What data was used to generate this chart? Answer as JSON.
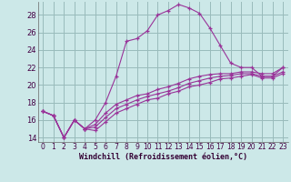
{
  "xlabel": "Windchill (Refroidissement éolien,°C)",
  "bg_color": "#cce8e8",
  "line_color": "#993399",
  "grid_color": "#99bbbb",
  "xlim": [
    -0.5,
    23.5
  ],
  "ylim": [
    13.5,
    29.5
  ],
  "xticks": [
    0,
    1,
    2,
    3,
    4,
    5,
    6,
    7,
    8,
    9,
    10,
    11,
    12,
    13,
    14,
    15,
    16,
    17,
    18,
    19,
    20,
    21,
    22,
    23
  ],
  "yticks": [
    14,
    16,
    18,
    20,
    22,
    24,
    26,
    28
  ],
  "lines": [
    {
      "x": [
        0,
        1,
        2,
        3,
        4,
        5,
        6,
        7,
        8,
        9,
        10,
        11,
        12,
        13,
        14,
        15,
        16,
        17,
        18,
        19,
        20,
        21,
        22,
        23
      ],
      "y": [
        17.0,
        16.5,
        14.0,
        16.0,
        15.0,
        16.0,
        18.0,
        21.0,
        25.0,
        25.3,
        26.2,
        28.0,
        28.5,
        29.2,
        28.8,
        28.2,
        26.5,
        24.5,
        22.5,
        22.0,
        22.0,
        21.0,
        21.0,
        22.0
      ]
    },
    {
      "x": [
        0,
        1,
        2,
        3,
        4,
        5,
        6,
        7,
        8,
        9,
        10,
        11,
        12,
        13,
        14,
        15,
        16,
        17,
        18,
        19,
        20,
        21,
        22,
        23
      ],
      "y": [
        17.0,
        16.5,
        14.0,
        16.0,
        15.0,
        15.5,
        16.8,
        17.8,
        18.3,
        18.8,
        19.0,
        19.5,
        19.8,
        20.2,
        20.7,
        21.0,
        21.2,
        21.3,
        21.3,
        21.5,
        21.5,
        21.3,
        21.3,
        22.0
      ]
    },
    {
      "x": [
        0,
        1,
        2,
        3,
        4,
        5,
        6,
        7,
        8,
        9,
        10,
        11,
        12,
        13,
        14,
        15,
        16,
        17,
        18,
        19,
        20,
        21,
        22,
        23
      ],
      "y": [
        17.0,
        16.5,
        14.0,
        16.0,
        15.0,
        15.2,
        16.3,
        17.3,
        17.8,
        18.3,
        18.7,
        19.0,
        19.3,
        19.7,
        20.2,
        20.5,
        20.8,
        21.0,
        21.1,
        21.3,
        21.3,
        21.0,
        21.0,
        21.5
      ]
    },
    {
      "x": [
        0,
        1,
        2,
        3,
        4,
        5,
        6,
        7,
        8,
        9,
        10,
        11,
        12,
        13,
        14,
        15,
        16,
        17,
        18,
        19,
        20,
        21,
        22,
        23
      ],
      "y": [
        17.0,
        16.5,
        14.0,
        16.0,
        15.0,
        14.8,
        15.8,
        16.8,
        17.3,
        17.8,
        18.3,
        18.5,
        19.0,
        19.3,
        19.8,
        20.0,
        20.3,
        20.7,
        20.8,
        21.0,
        21.2,
        20.8,
        20.8,
        21.3
      ]
    }
  ]
}
